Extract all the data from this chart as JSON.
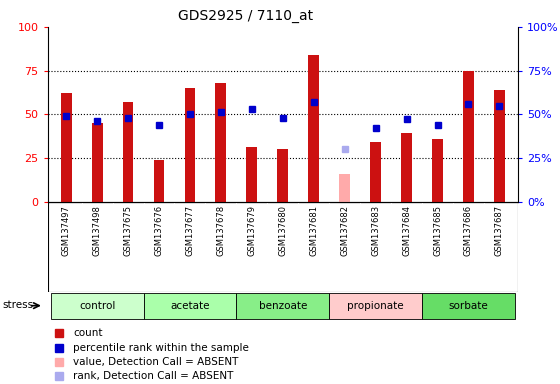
{
  "title": "GDS2925 / 7110_at",
  "samples": [
    "GSM137497",
    "GSM137498",
    "GSM137675",
    "GSM137676",
    "GSM137677",
    "GSM137678",
    "GSM137679",
    "GSM137680",
    "GSM137681",
    "GSM137682",
    "GSM137683",
    "GSM137684",
    "GSM137685",
    "GSM137686",
    "GSM137687"
  ],
  "count_values": [
    62,
    45,
    57,
    24,
    65,
    68,
    31,
    30,
    84,
    16,
    34,
    39,
    36,
    75,
    64
  ],
  "count_absent": [
    false,
    false,
    false,
    false,
    false,
    false,
    false,
    false,
    false,
    true,
    false,
    false,
    false,
    false,
    false
  ],
  "rank_values": [
    49,
    46,
    48,
    44,
    50,
    51,
    53,
    48,
    57,
    30,
    42,
    47,
    44,
    56,
    55
  ],
  "rank_absent": [
    false,
    false,
    false,
    false,
    false,
    false,
    false,
    false,
    false,
    true,
    false,
    false,
    false,
    false,
    false
  ],
  "groups": [
    {
      "name": "control",
      "indices": [
        0,
        1,
        2
      ],
      "color": "#ccffcc"
    },
    {
      "name": "acetate",
      "indices": [
        3,
        4,
        5
      ],
      "color": "#aaffaa"
    },
    {
      "name": "benzoate",
      "indices": [
        6,
        7,
        8
      ],
      "color": "#88ee88"
    },
    {
      "name": "propionate",
      "indices": [
        9,
        10,
        11
      ],
      "color": "#ffcccc"
    },
    {
      "name": "sorbate",
      "indices": [
        12,
        13,
        14
      ],
      "color": "#66dd66"
    }
  ],
  "bar_color_present": "#cc1111",
  "bar_color_absent": "#ffaaaa",
  "rank_color_present": "#0000cc",
  "rank_color_absent": "#aaaaee",
  "sample_bg_color": "#d0d0d0",
  "sample_divider_color": "#ffffff",
  "plot_bg_color": "#ffffff",
  "yticks": [
    0,
    25,
    50,
    75,
    100
  ],
  "grid_vals": [
    25,
    50,
    75
  ],
  "ylim": [
    0,
    100
  ],
  "legend": [
    {
      "label": "count",
      "color": "#cc1111",
      "marker": "s"
    },
    {
      "label": "percentile rank within the sample",
      "color": "#0000cc",
      "marker": "s"
    },
    {
      "label": "value, Detection Call = ABSENT",
      "color": "#ffaaaa",
      "marker": "s"
    },
    {
      "label": "rank, Detection Call = ABSENT",
      "color": "#aaaaee",
      "marker": "s"
    }
  ]
}
